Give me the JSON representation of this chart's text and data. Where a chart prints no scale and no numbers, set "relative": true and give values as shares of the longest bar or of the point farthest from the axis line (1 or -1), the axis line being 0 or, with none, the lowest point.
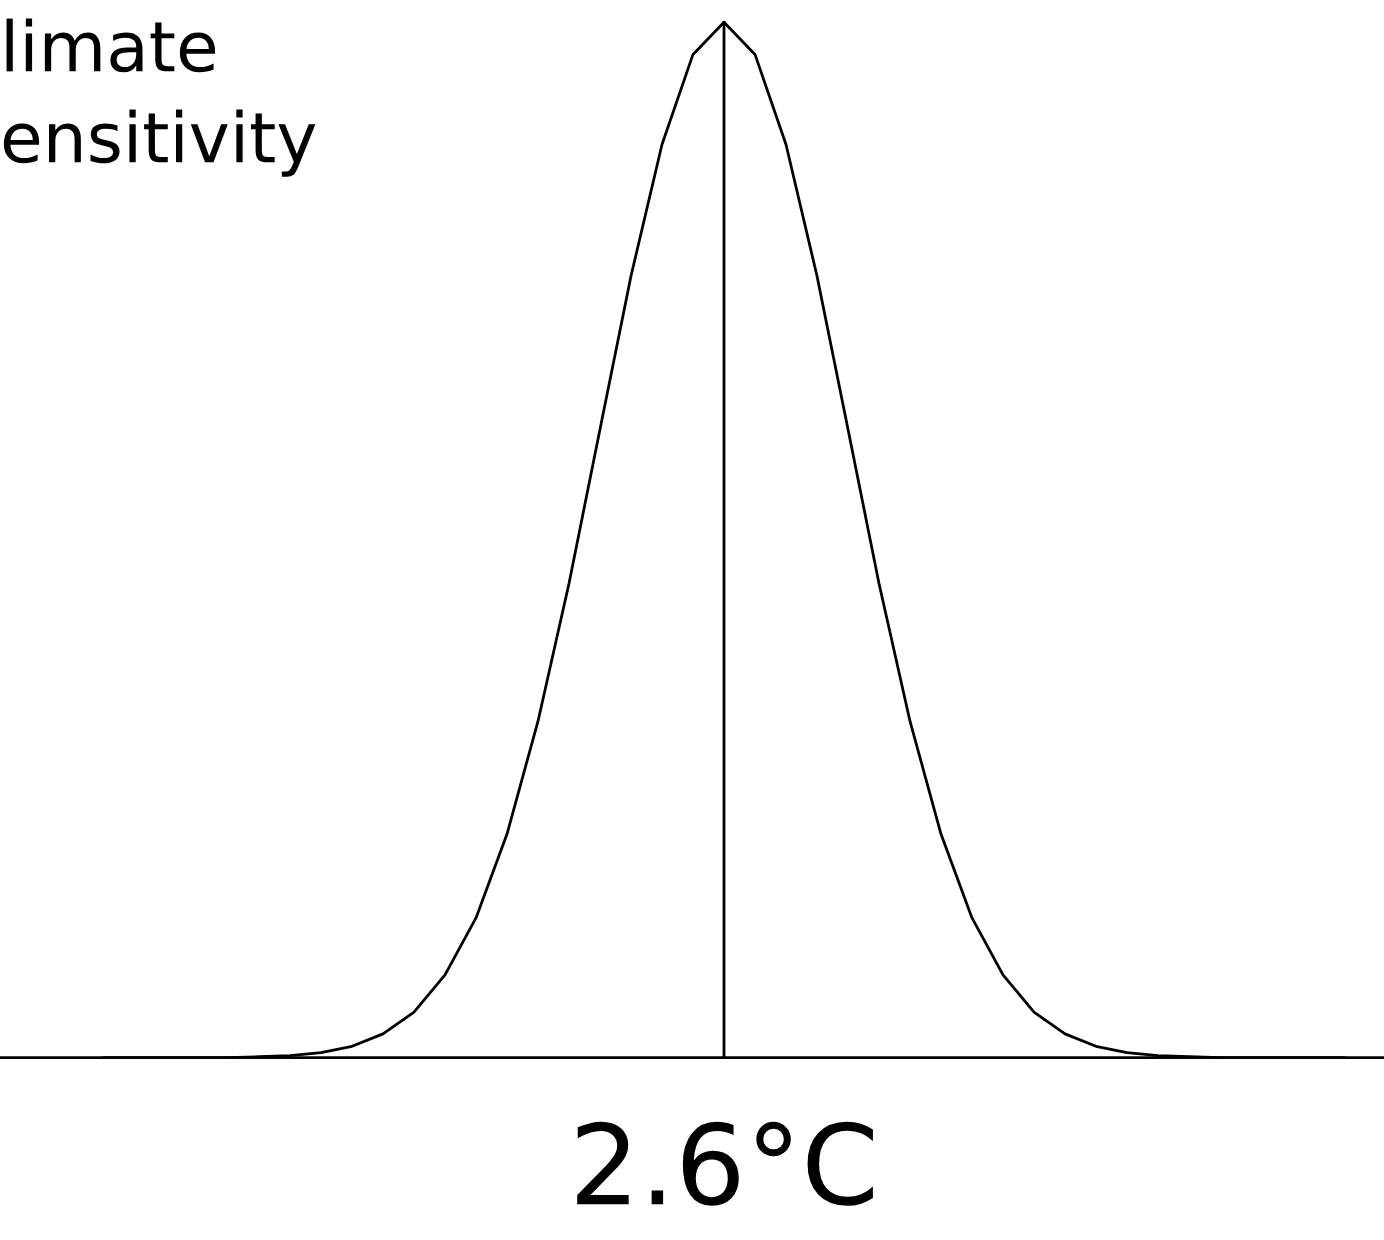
{
  "chart_data": {
    "type": "line",
    "relative": true,
    "title": "limate\nensitivity",
    "categories": [
      null,
      null,
      null,
      null,
      null,
      null,
      null,
      null,
      null,
      null,
      null,
      null,
      null,
      null,
      null,
      null,
      null,
      null,
      null,
      null,
      null,
      null,
      null,
      null,
      null,
      null,
      null,
      null,
      null,
      null,
      null,
      null,
      null,
      null,
      null,
      null,
      null,
      null,
      null,
      null,
      null
    ],
    "series": [
      {
        "color": "#000000",
        "values": [
          0,
          0,
          0,
          0,
          0,
          0.001,
          0.002,
          0.005,
          0.011,
          0.023,
          0.044,
          0.08,
          0.135,
          0.216,
          0.325,
          0.458,
          0.607,
          0.755,
          0.882,
          0.969,
          1,
          0.969,
          0.882,
          0.755,
          0.607,
          0.458,
          0.325,
          0.216,
          0.135,
          0.08,
          0.044,
          0.023,
          0.011,
          0.005,
          0.002,
          0.001,
          0,
          0,
          0,
          0,
          0
        ]
      }
    ],
    "annotations": [
      "2.6°C"
    ],
    "marker": "none",
    "line_style": "solid",
    "legend": false
  }
}
